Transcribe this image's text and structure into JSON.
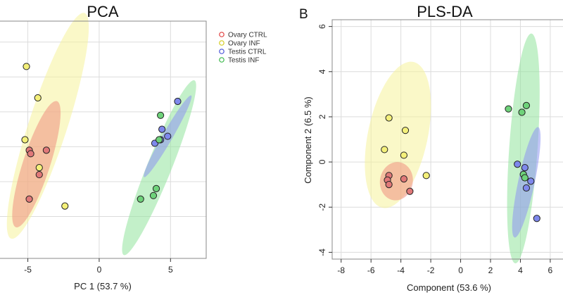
{
  "panel_label_b": "B",
  "legend": {
    "entries": [
      {
        "label": "Ovary CTRL",
        "color": "#e04040"
      },
      {
        "label": "Ovary INF",
        "color": "#d4cc20"
      },
      {
        "label": "Testis CTRL",
        "color": "#4a55d8"
      },
      {
        "label": "Testis INF",
        "color": "#3ab84a"
      }
    ]
  },
  "chart_data": [
    {
      "type": "scatter",
      "title": "PCA",
      "xlabel": "PC 1 (53.7 %)",
      "ylabel": "",
      "xlim": [
        -7.0,
        7.5
      ],
      "ylim": [
        -3.2,
        3.6
      ],
      "x_ticks": [
        -5,
        0,
        5
      ],
      "x_tick_labels": [
        "-5",
        "0",
        "5"
      ],
      "grid": true,
      "group_colors": {
        "Ovary CTRL": {
          "fill": "#e07878",
          "ellipse": "#ee9080"
        },
        "Ovary INF": {
          "fill": "#f4f07a",
          "ellipse": "#f6f29a"
        },
        "Testis CTRL": {
          "fill": "#7e88ec",
          "ellipse": "#8e96f0"
        },
        "Testis INF": {
          "fill": "#6ed27a",
          "ellipse": "#92e49c"
        }
      },
      "ellipses": [
        {
          "group": "Ovary INF",
          "cx": -3.6,
          "cy": 0.6,
          "rx": 1.35,
          "ry": 3.4,
          "angle": 18
        },
        {
          "group": "Ovary CTRL",
          "cx": -4.4,
          "cy": -0.5,
          "rx": 0.95,
          "ry": 1.9,
          "angle": 18
        },
        {
          "group": "Testis INF",
          "cx": 4.2,
          "cy": -0.6,
          "rx": 0.85,
          "ry": 2.7,
          "angle": 22
        },
        {
          "group": "Testis CTRL",
          "cx": 4.8,
          "cy": 0.3,
          "rx": 0.35,
          "ry": 1.35,
          "angle": 30
        }
      ],
      "series": [
        {
          "name": "Ovary CTRL",
          "points": [
            [
              -4.9,
              -0.1
            ],
            [
              -4.8,
              -0.2
            ],
            [
              -3.7,
              -0.1
            ],
            [
              -4.2,
              -0.8
            ],
            [
              -4.9,
              -1.5
            ]
          ]
        },
        {
          "name": "Ovary INF",
          "points": [
            [
              -5.1,
              2.3
            ],
            [
              -4.3,
              1.4
            ],
            [
              -5.2,
              0.2
            ],
            [
              -4.2,
              -0.6
            ],
            [
              -2.4,
              -1.7
            ]
          ]
        },
        {
          "name": "Testis CTRL",
          "points": [
            [
              5.5,
              1.3
            ],
            [
              4.4,
              0.5
            ],
            [
              4.8,
              0.3
            ],
            [
              3.9,
              0.1
            ],
            [
              4.3,
              0.2
            ]
          ]
        },
        {
          "name": "Testis INF",
          "points": [
            [
              4.3,
              0.9
            ],
            [
              4.2,
              0.2
            ],
            [
              4.0,
              -1.2
            ],
            [
              3.8,
              -1.4
            ],
            [
              2.9,
              -1.5
            ]
          ]
        }
      ]
    },
    {
      "type": "scatter",
      "title": "PLS-DA",
      "xlabel": "Component (53.6 %)",
      "ylabel": "Component 2 (6.5 %)",
      "xlim": [
        -8.6,
        6.9
      ],
      "ylim": [
        -4.3,
        6.3
      ],
      "x_ticks": [
        -8,
        -6,
        -4,
        -2,
        0,
        2,
        4,
        6
      ],
      "x_tick_labels": [
        "-8",
        "-6",
        "-4",
        "-2",
        "0",
        "2",
        "4",
        "6"
      ],
      "y_ticks": [
        -4,
        -2,
        0,
        2,
        4,
        6
      ],
      "y_tick_labels": [
        "-4",
        "-2",
        "0",
        "2",
        "4",
        "6"
      ],
      "grid": true,
      "group_colors": {
        "Ovary CTRL": {
          "fill": "#e07878",
          "ellipse": "#ee9080"
        },
        "Ovary INF": {
          "fill": "#f4f07a",
          "ellipse": "#f6f29a"
        },
        "Testis CTRL": {
          "fill": "#7e88ec",
          "ellipse": "#8e96f0"
        },
        "Testis INF": {
          "fill": "#6ed27a",
          "ellipse": "#92e49c"
        }
      },
      "ellipses": [
        {
          "group": "Ovary INF",
          "cx": -4.2,
          "cy": 1.2,
          "rx": 2.0,
          "ry": 3.3,
          "angle": 12
        },
        {
          "group": "Ovary CTRL",
          "cx": -4.3,
          "cy": -0.85,
          "rx": 1.1,
          "ry": 0.85,
          "angle": 10
        },
        {
          "group": "Testis INF",
          "cx": 4.2,
          "cy": 0.6,
          "rx": 0.95,
          "ry": 5.1,
          "angle": 4
        },
        {
          "group": "Testis CTRL",
          "cx": 4.4,
          "cy": -0.9,
          "rx": 0.55,
          "ry": 2.5,
          "angle": 12
        }
      ],
      "series": [
        {
          "name": "Ovary CTRL",
          "points": [
            [
              -4.8,
              -0.6
            ],
            [
              -4.9,
              -0.8
            ],
            [
              -4.8,
              -1.0
            ],
            [
              -3.8,
              -0.75
            ],
            [
              -3.4,
              -1.3
            ]
          ]
        },
        {
          "name": "Ovary INF",
          "points": [
            [
              -4.8,
              1.95
            ],
            [
              -3.7,
              1.4
            ],
            [
              -5.1,
              0.55
            ],
            [
              -3.8,
              0.3
            ],
            [
              -2.3,
              -0.6
            ]
          ]
        },
        {
          "name": "Testis CTRL",
          "points": [
            [
              3.8,
              -0.1
            ],
            [
              4.3,
              -0.25
            ],
            [
              4.7,
              -0.85
            ],
            [
              4.4,
              -1.15
            ],
            [
              5.1,
              -2.5
            ]
          ]
        },
        {
          "name": "Testis INF",
          "points": [
            [
              3.2,
              2.35
            ],
            [
              4.1,
              2.2
            ],
            [
              4.4,
              2.5
            ],
            [
              4.2,
              -0.55
            ],
            [
              4.3,
              -0.7
            ]
          ]
        }
      ]
    }
  ]
}
